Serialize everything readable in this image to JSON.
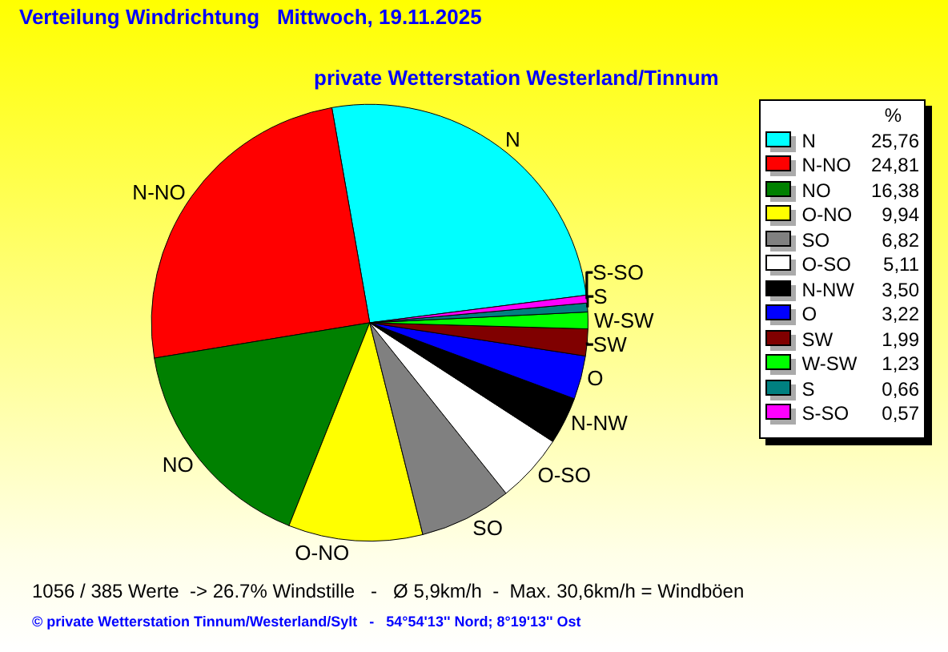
{
  "chart_data": {
    "type": "pie",
    "title": "Verteilung Windrichtung   Mittwoch, 19.11.2025",
    "subtitle": "private Wetterstation Westerland/Tinnum",
    "categories": [
      "N",
      "N-NO",
      "NO",
      "O-NO",
      "SO",
      "O-SO",
      "N-NW",
      "O",
      "SW",
      "W-SW",
      "S",
      "S-SO"
    ],
    "values": [
      25.76,
      24.81,
      16.38,
      9.94,
      6.82,
      5.11,
      3.5,
      3.22,
      1.99,
      1.23,
      0.66,
      0.57
    ],
    "value_labels": [
      "25,76",
      "24,81",
      "16,38",
      "9,94",
      "6,82",
      "5,11",
      "3,50",
      "3,22",
      "1,99",
      "1,23",
      "0,66",
      "0,57"
    ],
    "colors": [
      "#00ffff",
      "#ff0000",
      "#008000",
      "#ffff00",
      "#808080",
      "#ffffff",
      "#000000",
      "#0000ff",
      "#800000",
      "#00ff00",
      "#008080",
      "#ff00ff"
    ],
    "legend": "top right",
    "legend_title": "%",
    "annotations": [
      "1056 / 385 Werte  -> 26.7% Windstille   -   Ø 5,9km/h  -  Max. 30,6km/h = Windböen",
      "© private Wetterstation Tinnum/Westerland/Sylt   -   54°54'13'' Nord; 8°19'13'' Ost"
    ]
  }
}
